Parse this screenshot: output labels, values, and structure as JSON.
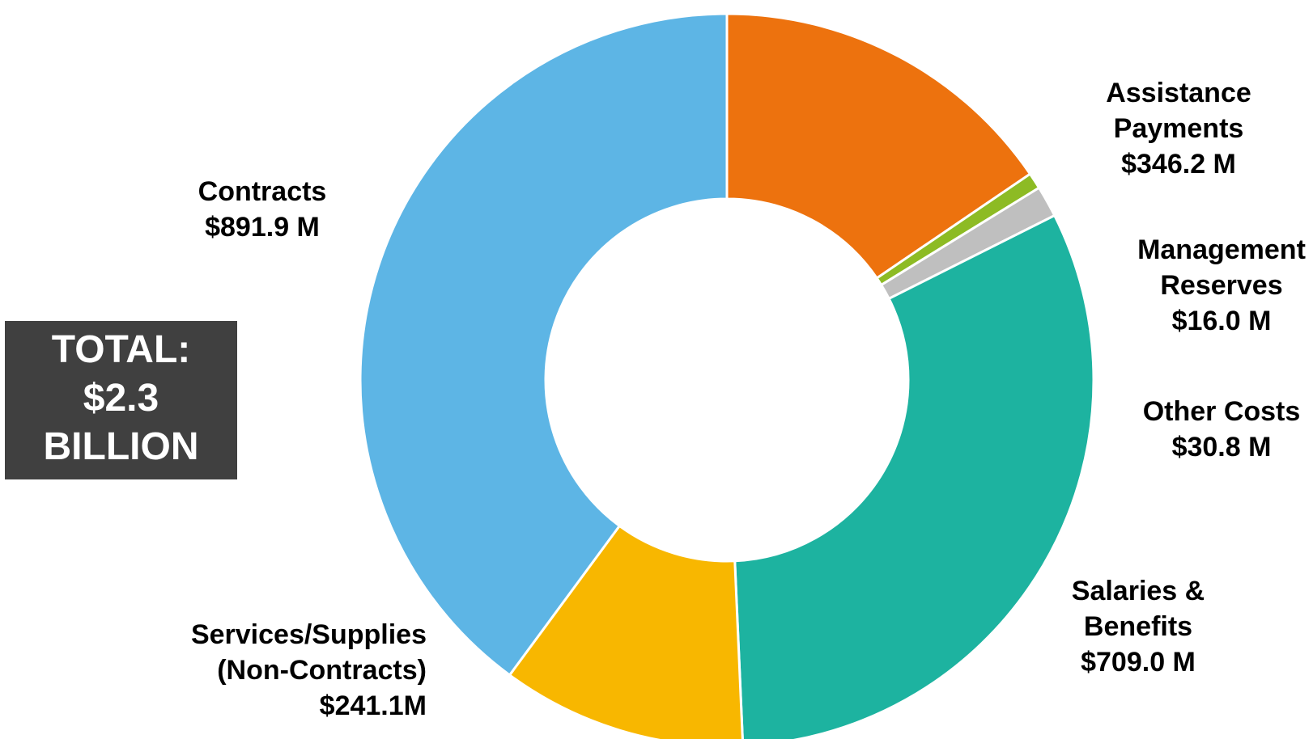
{
  "chart_data": {
    "type": "pie",
    "variant": "donut",
    "unit": "$M",
    "start_position": "12 o'clock, clockwise",
    "slices": [
      {
        "key": "assistance",
        "lines": [
          "Assistance",
          "Payments",
          "$346.2 M"
        ],
        "value": 346.2,
        "color": "#ED720E"
      },
      {
        "key": "management",
        "lines": [
          "Management",
          "Reserves",
          "$16.0 M"
        ],
        "value": 16.0,
        "color": "#8DBB24"
      },
      {
        "key": "other",
        "lines": [
          "Other Costs",
          "$30.8 M"
        ],
        "value": 30.8,
        "color": "#BFBFBF"
      },
      {
        "key": "salaries",
        "lines": [
          "Salaries &",
          "Benefits",
          "$709.0 M"
        ],
        "value": 709.0,
        "color": "#1DB3A0"
      },
      {
        "key": "services",
        "lines": [
          "Services/Supplies",
          "(Non-Contracts)",
          "$241.1M"
        ],
        "value": 241.1,
        "color": "#F8B700"
      },
      {
        "key": "contracts",
        "lines": [
          "Contracts",
          "$891.9 M"
        ],
        "value": 891.9,
        "color": "#5DB5E5"
      }
    ]
  },
  "total_box": {
    "line1": "TOTAL:",
    "line2": "$2.3",
    "line3": "BILLION"
  }
}
